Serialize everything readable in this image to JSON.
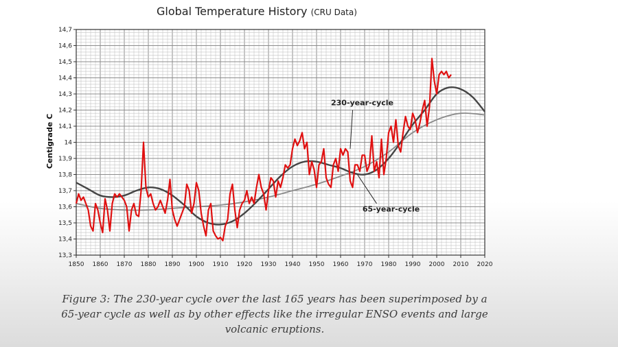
{
  "chart_data": {
    "type": "line",
    "title": "Global Temperature History",
    "subtitle": "(CRU Data)",
    "xlabel": "",
    "ylabel": "Centigrade C",
    "xlim": [
      1850,
      2020
    ],
    "ylim": [
      13.3,
      14.7
    ],
    "x_ticks": [
      1850,
      1860,
      1870,
      1880,
      1890,
      1900,
      1910,
      1920,
      1930,
      1940,
      1950,
      1960,
      1970,
      1980,
      1990,
      2000,
      2010,
      2020
    ],
    "x_tick_labels": [
      "1850",
      "1860",
      "1870",
      "1880",
      "1890",
      "1900",
      "1910",
      "1920",
      "1930",
      "1940",
      "1950",
      "1960",
      "1970",
      "1980",
      "1990",
      "2000",
      "2010",
      "2020"
    ],
    "y_ticks": [
      13.3,
      13.4,
      13.5,
      13.6,
      13.7,
      13.8,
      13.9,
      14.0,
      14.1,
      14.2,
      14.3,
      14.4,
      14.5,
      14.6,
      14.7
    ],
    "y_tick_labels": [
      "13,3",
      "13,4",
      "13,5",
      "13,6",
      "13,7",
      "13,8",
      "13,9",
      "14",
      "14,1",
      "14,2",
      "14,3",
      "14,4",
      "14,5",
      "14,6",
      "14,7"
    ],
    "grid": true,
    "annotations": [
      {
        "text": "230-year-cycle",
        "x": 1969,
        "y": 14.23
      },
      {
        "text": "65-year-cycle",
        "x": 1981,
        "y": 13.57
      }
    ],
    "series": [
      {
        "color": "#e01010",
        "x": [
          1850,
          1851,
          1852,
          1853,
          1854,
          1855,
          1856,
          1857,
          1858,
          1859,
          1860,
          1861,
          1862,
          1863,
          1864,
          1865,
          1866,
          1867,
          1868,
          1869,
          1870,
          1871,
          1872,
          1873,
          1874,
          1875,
          1876,
          1877,
          1878,
          1879,
          1880,
          1881,
          1882,
          1883,
          1884,
          1885,
          1886,
          1887,
          1888,
          1889,
          1890,
          1891,
          1892,
          1893,
          1894,
          1895,
          1896,
          1897,
          1898,
          1899,
          1900,
          1901,
          1902,
          1903,
          1904,
          1905,
          1906,
          1907,
          1908,
          1909,
          1910,
          1911,
          1912,
          1913,
          1914,
          1915,
          1916,
          1917,
          1918,
          1919,
          1920,
          1921,
          1922,
          1923,
          1924,
          1925,
          1926,
          1927,
          1928,
          1929,
          1930,
          1931,
          1932,
          1933,
          1934,
          1935,
          1936,
          1937,
          1938,
          1939,
          1940,
          1941,
          1942,
          1943,
          1944,
          1945,
          1946,
          1947,
          1948,
          1949,
          1950,
          1951,
          1952,
          1953,
          1954,
          1955,
          1956,
          1957,
          1958,
          1959,
          1960,
          1961,
          1962,
          1963,
          1964,
          1965,
          1966,
          1967,
          1968,
          1969,
          1970,
          1971,
          1972,
          1973,
          1974,
          1975,
          1976,
          1977,
          1978,
          1979,
          1980,
          1981,
          1982,
          1983,
          1984,
          1985,
          1986,
          1987,
          1988,
          1989,
          1990,
          1991,
          1992,
          1993,
          1994,
          1995,
          1996,
          1997,
          1998,
          1999,
          2000,
          2001,
          2002,
          2003,
          2004,
          2005,
          2006
        ],
        "values": [
          13.62,
          13.68,
          13.64,
          13.66,
          13.62,
          13.58,
          13.48,
          13.45,
          13.62,
          13.58,
          13.5,
          13.44,
          13.65,
          13.58,
          13.45,
          13.62,
          13.68,
          13.66,
          13.68,
          13.66,
          13.64,
          13.6,
          13.45,
          13.58,
          13.62,
          13.55,
          13.54,
          13.7,
          14.0,
          13.72,
          13.66,
          13.68,
          13.62,
          13.58,
          13.6,
          13.64,
          13.6,
          13.56,
          13.64,
          13.77,
          13.58,
          13.52,
          13.48,
          13.52,
          13.56,
          13.6,
          13.74,
          13.7,
          13.56,
          13.62,
          13.75,
          13.7,
          13.56,
          13.48,
          13.42,
          13.58,
          13.62,
          13.45,
          13.42,
          13.4,
          13.41,
          13.39,
          13.48,
          13.52,
          13.68,
          13.74,
          13.58,
          13.47,
          13.58,
          13.62,
          13.64,
          13.7,
          13.62,
          13.66,
          13.62,
          13.72,
          13.8,
          13.72,
          13.68,
          13.58,
          13.7,
          13.78,
          13.76,
          13.66,
          13.76,
          13.72,
          13.78,
          13.86,
          13.84,
          13.86,
          13.96,
          14.02,
          13.98,
          14.01,
          14.06,
          13.96,
          14.0,
          13.8,
          13.88,
          13.83,
          13.72,
          13.86,
          13.88,
          13.96,
          13.78,
          13.74,
          13.72,
          13.86,
          13.9,
          13.82,
          13.96,
          13.92,
          13.96,
          13.94,
          13.76,
          13.72,
          13.86,
          13.86,
          13.82,
          13.92,
          13.92,
          13.82,
          13.86,
          14.04,
          13.82,
          13.88,
          13.78,
          14.02,
          13.8,
          13.9,
          14.06,
          14.1,
          14.0,
          14.14,
          13.98,
          13.94,
          14.06,
          14.16,
          14.1,
          14.08,
          14.18,
          14.14,
          14.06,
          14.12,
          14.2,
          14.26,
          14.1,
          14.22,
          14.52,
          14.38,
          14.3,
          14.42,
          14.44,
          14.42,
          14.44,
          14.4,
          14.42
        ]
      },
      {
        "name": "65-year-cycle",
        "color": "#444444",
        "x": [
          1850,
          1855,
          1860,
          1865,
          1870,
          1875,
          1880,
          1885,
          1890,
          1895,
          1900,
          1905,
          1910,
          1915,
          1920,
          1925,
          1930,
          1935,
          1940,
          1945,
          1950,
          1955,
          1960,
          1965,
          1970,
          1975,
          1980,
          1985,
          1990,
          1995,
          2000,
          2005,
          2010,
          2015,
          2020
        ],
        "values": [
          13.75,
          13.71,
          13.67,
          13.66,
          13.67,
          13.7,
          13.72,
          13.71,
          13.67,
          13.61,
          13.54,
          13.5,
          13.49,
          13.51,
          13.56,
          13.63,
          13.71,
          13.79,
          13.85,
          13.88,
          13.88,
          13.86,
          13.84,
          13.81,
          13.8,
          13.83,
          13.9,
          14.0,
          14.11,
          14.2,
          14.3,
          14.34,
          14.33,
          14.28,
          14.19
        ]
      },
      {
        "name": "230-year-cycle",
        "color": "#8a8a8a",
        "x": [
          1850,
          1860,
          1870,
          1880,
          1890,
          1900,
          1910,
          1920,
          1930,
          1940,
          1950,
          1960,
          1970,
          1980,
          1990,
          2000,
          2010,
          2020
        ],
        "values": [
          13.62,
          13.59,
          13.58,
          13.58,
          13.59,
          13.6,
          13.61,
          13.63,
          13.66,
          13.7,
          13.74,
          13.79,
          13.85,
          13.94,
          14.06,
          14.14,
          14.18,
          14.17
        ]
      }
    ]
  },
  "caption": {
    "line1": "Figure 3:  The 230-year cycle over the last 165 years has been superimposed by a",
    "line2": "65-year cycle as well as by other effects like the irregular ENSO events and large",
    "line3": "volcanic eruptions."
  }
}
